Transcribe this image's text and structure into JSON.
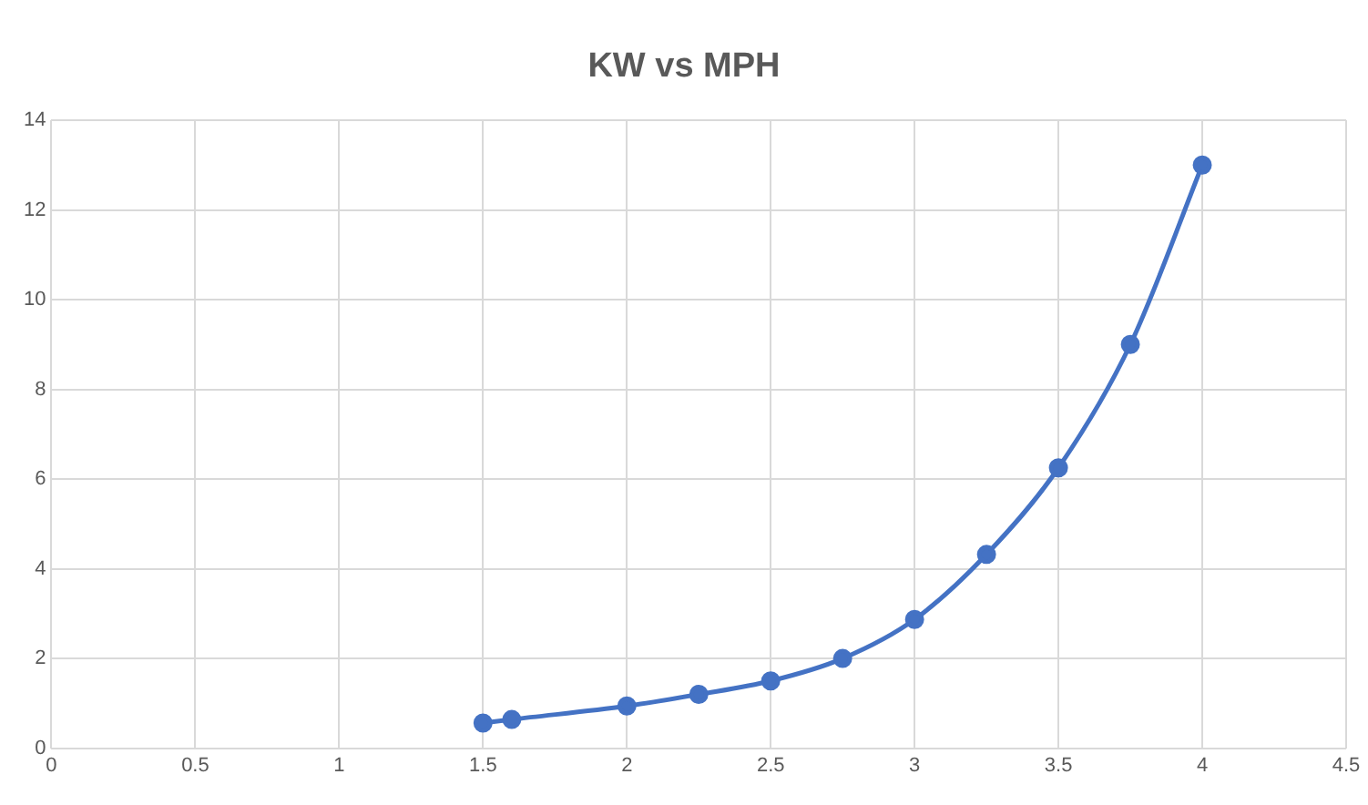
{
  "chart_data": {
    "type": "line",
    "title": "KW vs MPH",
    "series": [
      {
        "color": "#4472c4",
        "x": [
          1.5,
          1.6,
          2,
          2.25,
          2.5,
          2.75,
          3,
          3.25,
          3.5,
          3.75,
          4
        ],
        "values": [
          0.56,
          0.64,
          0.94,
          1.2,
          1.5,
          2.0,
          2.87,
          4.32,
          6.25,
          9.0,
          13.0
        ]
      }
    ],
    "xlim": [
      0,
      4.5
    ],
    "xticks": [
      0,
      0.5,
      1,
      1.5,
      2,
      2.5,
      3,
      3.5,
      4,
      4.5
    ],
    "ylim": [
      0,
      14
    ],
    "yticks": [
      0,
      2,
      4,
      6,
      8,
      10,
      12,
      14
    ],
    "grid": true,
    "legend": false,
    "marker": "circle",
    "line_style": "solid"
  }
}
